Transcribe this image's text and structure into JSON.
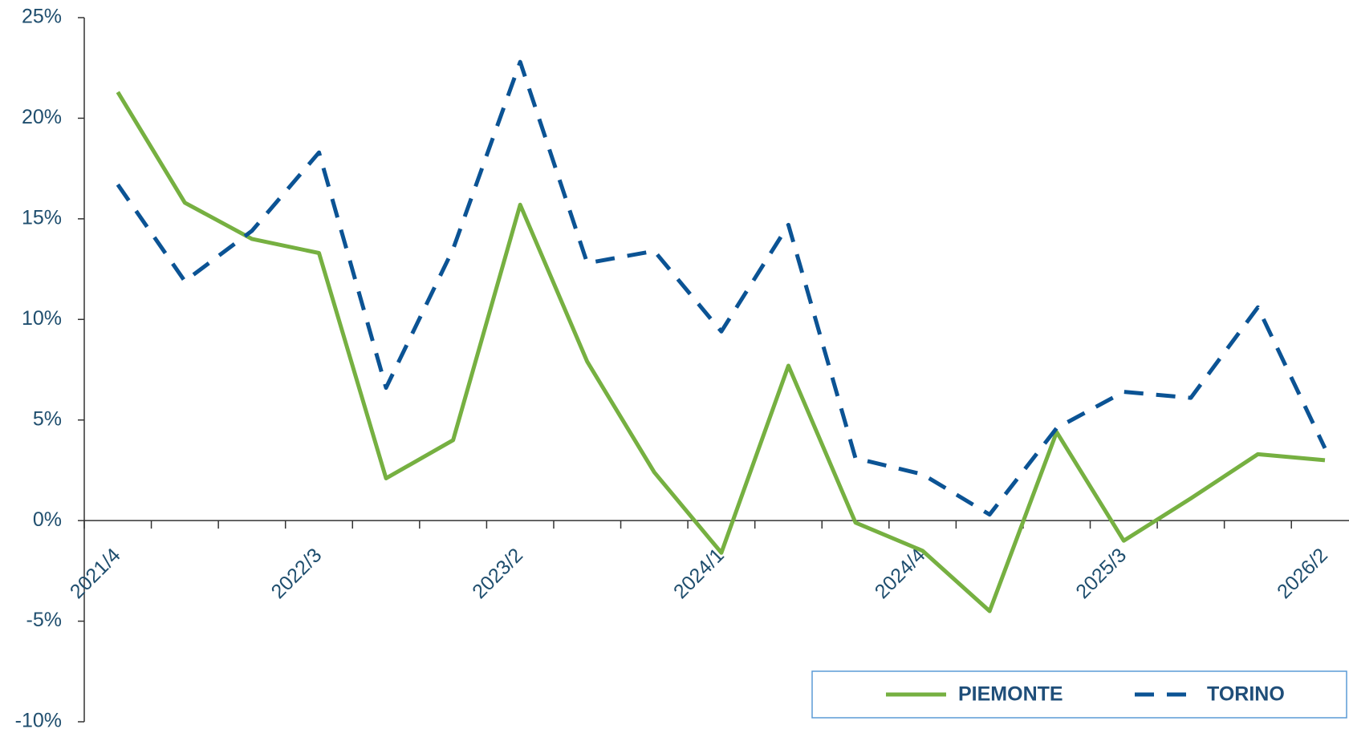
{
  "chart_data": {
    "type": "line",
    "categories": [
      "2021/4",
      null,
      null,
      "2022/3",
      null,
      null,
      "2023/2",
      null,
      null,
      "2024/1",
      null,
      null,
      "2024/4",
      null,
      null,
      "2025/3",
      null,
      null,
      "2026/2"
    ],
    "series": [
      {
        "name": "PIEMONTE",
        "color": "#76b041",
        "dash": false,
        "values": [
          21.3,
          15.8,
          14.0,
          13.3,
          2.1,
          4.0,
          15.7,
          7.9,
          2.4,
          -1.6,
          7.7,
          -0.1,
          -1.5,
          -4.5,
          4.4,
          -1.0,
          1.1,
          3.3,
          3.0
        ]
      },
      {
        "name": "TORINO",
        "color": "#0b5394",
        "dash": true,
        "values": [
          16.7,
          11.9,
          14.4,
          18.3,
          6.6,
          13.5,
          22.8,
          12.8,
          13.4,
          9.4,
          14.7,
          3.1,
          2.3,
          0.3,
          4.6,
          6.4,
          6.1,
          10.6,
          3.6
        ]
      }
    ],
    "ylim": [
      -10,
      25
    ],
    "yticks": [
      {
        "value": -10,
        "label": "-10%"
      },
      {
        "value": -5,
        "label": "-5%"
      },
      {
        "value": 0,
        "label": "0%"
      },
      {
        "value": 5,
        "label": "5%"
      },
      {
        "value": 10,
        "label": "10%"
      },
      {
        "value": 15,
        "label": "15%"
      },
      {
        "value": 20,
        "label": "20%"
      },
      {
        "value": 25,
        "label": "25%"
      }
    ],
    "legend": "bottom-right"
  }
}
